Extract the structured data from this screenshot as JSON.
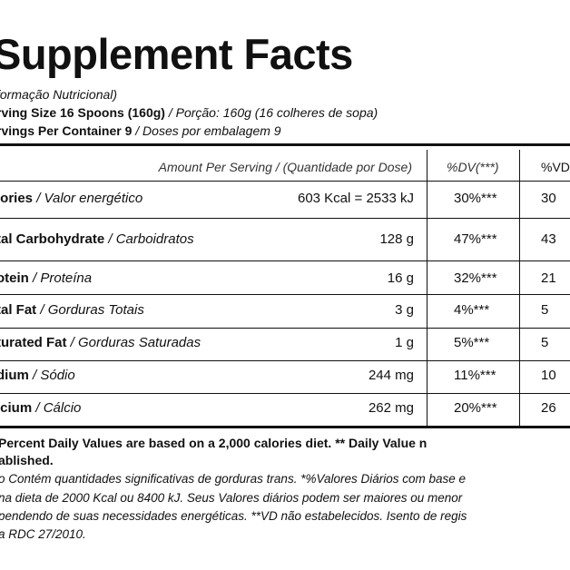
{
  "title": "Supplement Facts",
  "subtitle": "formação Nutricional)",
  "serving_size": {
    "label": "rving Size 16 Spoons (160g)",
    "translation": " / Porção: 160g (16 colheres de sopa)"
  },
  "servings_per_container": {
    "label": "rvings Per Container 9",
    "translation": " / Doses por embalagem 9"
  },
  "table_header": {
    "amount": "Amount Per Serving  / (Quantidade por Dose)",
    "dv1": "%DV(***)",
    "dv2": "%VD"
  },
  "rows": [
    {
      "name": "lories",
      "translation": " / Valor energético",
      "amount": "603 Kcal = 2533 kJ",
      "dv1": "30%***",
      "dv2": "30"
    },
    {
      "name": "tal Carbohydrate",
      "translation": " / Carboidratos",
      "amount": "128 g",
      "dv1": "47%***",
      "dv2": "43"
    },
    {
      "name": "otein",
      "translation": " / Proteína",
      "amount": "16 g",
      "dv1": "32%***",
      "dv2": "21"
    },
    {
      "name": "tal Fat",
      "translation": " / Gorduras Totais",
      "amount": "3 g",
      "dv1": "4%***",
      "dv2": "5"
    },
    {
      "name": "turated Fat",
      "translation": " / Gorduras Saturadas",
      "amount": "1 g",
      "dv1": "5%***",
      "dv2": "5"
    },
    {
      "name": "dium",
      "translation": " / Sódio",
      "amount": "244 mg",
      "dv1": "11%***",
      "dv2": "10"
    },
    {
      "name": "lcium",
      "translation": " / Cálcio",
      "amount": "262 mg",
      "dv1": "20%***",
      "dv2": "26"
    }
  ],
  "footnote_bold": {
    "line1": "Percent Daily Values are based on a 2,000 calories diet. ** Daily Value n",
    "line2": "ablished."
  },
  "footnote_lines": [
    "o Contém quantidades significativas de gorduras trans. *%Valores Diários com base e",
    "na dieta de 2000 Kcal ou 8400 kJ. Seus Valores diários podem ser maiores ou menor",
    "pendendo de suas necessidades energéticas. **VD não estabelecidos. Isento de regis",
    "a RDC 27/2010."
  ]
}
